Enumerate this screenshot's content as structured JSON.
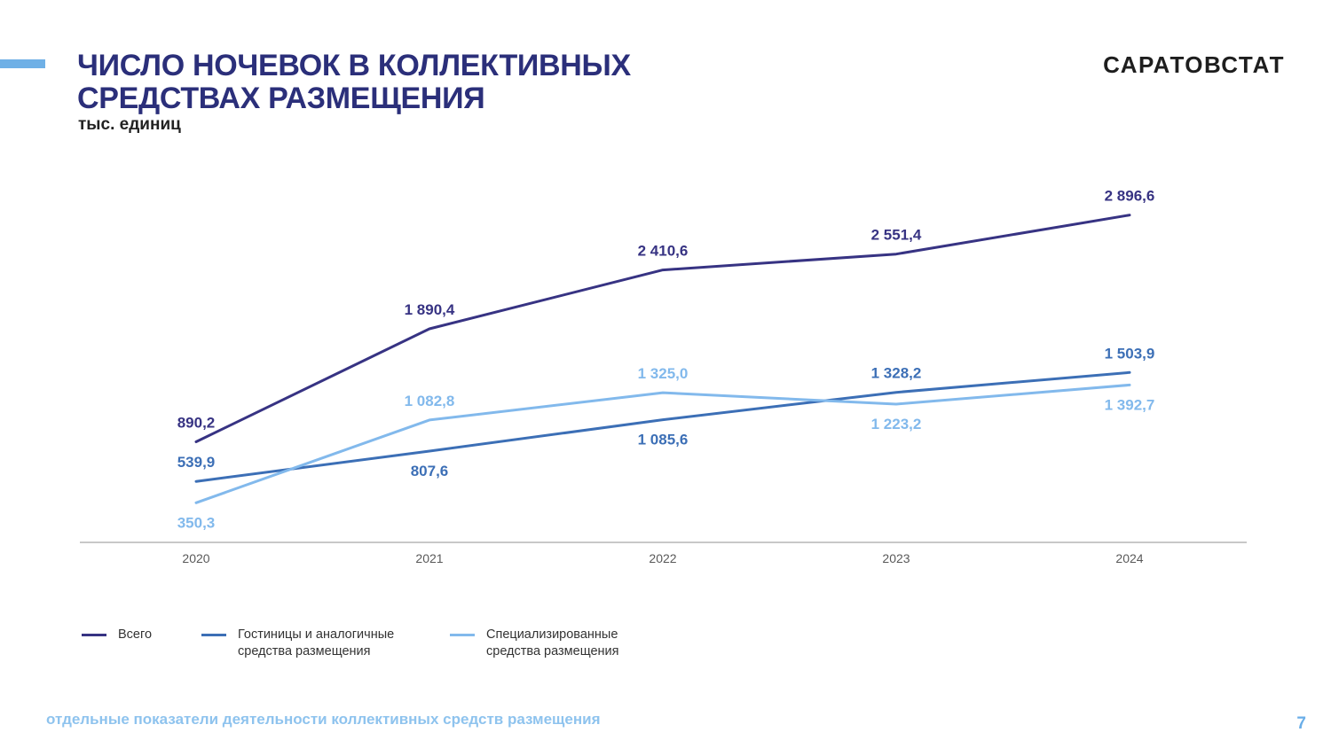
{
  "header": {
    "title_line1": "ЧИСЛО НОЧЕВОК В КОЛЛЕКТИВНЫХ",
    "title_line2": "СРЕДСТВАХ РАЗМЕЩЕНИЯ",
    "units": "тыс. единиц",
    "brand": "САРАТОВСТАТ"
  },
  "footer": {
    "text": "отдельные показатели деятельности коллективных средств размещения",
    "page_number": "7"
  },
  "colors": {
    "title": "#2b2f7a",
    "accent": "#6fb0e6"
  },
  "chart_data": {
    "type": "line",
    "title": "ЧИСЛО НОЧЕВОК В КОЛЛЕКТИВНЫХ СРЕДСТВАХ РАЗМЕЩЕНИЯ",
    "ylabel": "тыс. единиц",
    "categories": [
      "2020",
      "2021",
      "2022",
      "2023",
      "2024"
    ],
    "ylim": [
      0,
      3400
    ],
    "grid": false,
    "legend_position": "bottom-left",
    "series": [
      {
        "name": "Всего",
        "legend_label": "Всего",
        "color": "#373383",
        "values": [
          890.2,
          1890.4,
          2410.6,
          2551.4,
          2896.6
        ],
        "labels": [
          "890,2",
          "1 890,4",
          "2 410,6",
          "2 551,4",
          "2 896,6"
        ],
        "label_sides": [
          "above",
          "above",
          "above",
          "above",
          "above"
        ]
      },
      {
        "name": "Гостиницы и аналогичные средства размещения",
        "legend_label": "Гостиницы и аналогичные\nсредства размещения",
        "color": "#3c6fb6",
        "values": [
          539.9,
          807.6,
          1085.6,
          1328.2,
          1503.9
        ],
        "labels": [
          "539,9",
          "807,6",
          "1 085,6",
          "1 328,2",
          "1 503,9"
        ],
        "label_sides": [
          "above",
          "below",
          "below",
          "above",
          "above"
        ]
      },
      {
        "name": "Специализированные средства размещения",
        "legend_label": "Специализированные\nсредства размещения",
        "color": "#82b9ec",
        "values": [
          350.3,
          1082.8,
          1325.0,
          1223.2,
          1392.7
        ],
        "labels": [
          "350,3",
          "1 082,8",
          "1 325,0",
          "1 223,2",
          "1 392,7"
        ],
        "label_sides": [
          "below",
          "above",
          "above",
          "below",
          "below"
        ]
      }
    ]
  }
}
